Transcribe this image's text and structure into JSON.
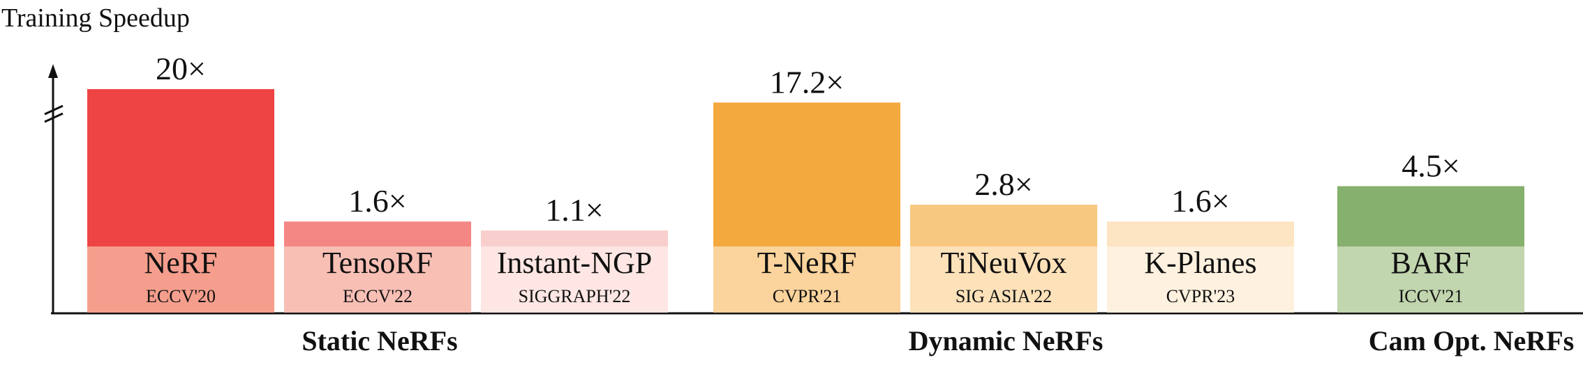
{
  "chart_data": {
    "type": "bar",
    "title": "",
    "ylabel": "Training Speedup",
    "xlabel": "",
    "axis_break": true,
    "grid": false,
    "legend": "none",
    "categories": [
      "NeRF",
      "TensoRF",
      "Instant-NGP",
      "T-NeRF",
      "TiNeuVox",
      "K-Planes",
      "BARF"
    ],
    "venues": [
      "ECCV'20",
      "ECCV'22",
      "SIGGRAPH'22",
      "CVPR'21",
      "SIG ASIA'22",
      "CVPR'23",
      "ICCV'21"
    ],
    "value_labels": [
      "20×",
      "1.6×",
      "1.1×",
      "17.2×",
      "2.8×",
      "1.6×",
      "4.5×"
    ],
    "values": [
      20,
      1.6,
      1.1,
      17.2,
      2.8,
      1.6,
      4.5
    ],
    "groups": [
      {
        "label": "Static NeRFs",
        "categories": [
          "NeRF",
          "TensoRF",
          "Instant-NGP"
        ]
      },
      {
        "label": "Dynamic NeRFs",
        "categories": [
          "T-NeRF",
          "TiNeuVox",
          "K-Planes"
        ]
      },
      {
        "label": "Cam Opt. NeRFs",
        "categories": [
          "BARF"
        ]
      }
    ],
    "colors": {
      "bars": [
        "#ef4444",
        "#f48784",
        "#f9cfcd",
        "#f4a93f",
        "#f7c87f",
        "#fde4c2",
        "#86b06d"
      ],
      "label_boxes": [
        "#f69e8d",
        "#f8bfb5",
        "#fde6e3",
        "#fbd39c",
        "#fde1b9",
        "#fff1df",
        "#c1d5ae"
      ],
      "axis": "#111111",
      "text": "#111111"
    }
  }
}
